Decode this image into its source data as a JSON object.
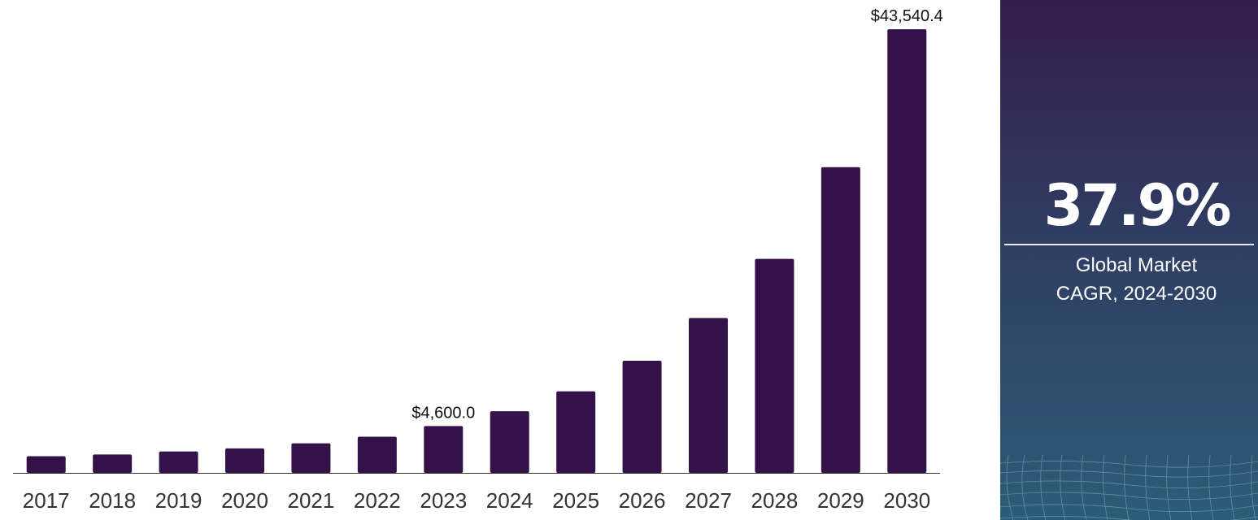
{
  "chart_data": {
    "type": "bar",
    "categories": [
      "2017",
      "2018",
      "2019",
      "2020",
      "2021",
      "2022",
      "2023",
      "2024",
      "2025",
      "2026",
      "2027",
      "2028",
      "2029",
      "2030"
    ],
    "values": [
      1630,
      1800,
      2100,
      2400,
      2900,
      3550,
      4600,
      6050,
      8000,
      11000,
      15200,
      21000,
      30000,
      43540.4
    ],
    "data_labels": [
      {
        "category": "2023",
        "text": "$4,600.0"
      },
      {
        "category": "2030",
        "text": "$43,540.4"
      }
    ],
    "title": "",
    "xlabel": "",
    "ylabel": "",
    "ylim": [
      0,
      43540.4
    ],
    "grid": false,
    "bar_color": "#341249"
  },
  "side_panel": {
    "cagr": "37.9%",
    "caption_line1": "Global Market",
    "caption_line2": "CAGR, 2024-2030"
  }
}
